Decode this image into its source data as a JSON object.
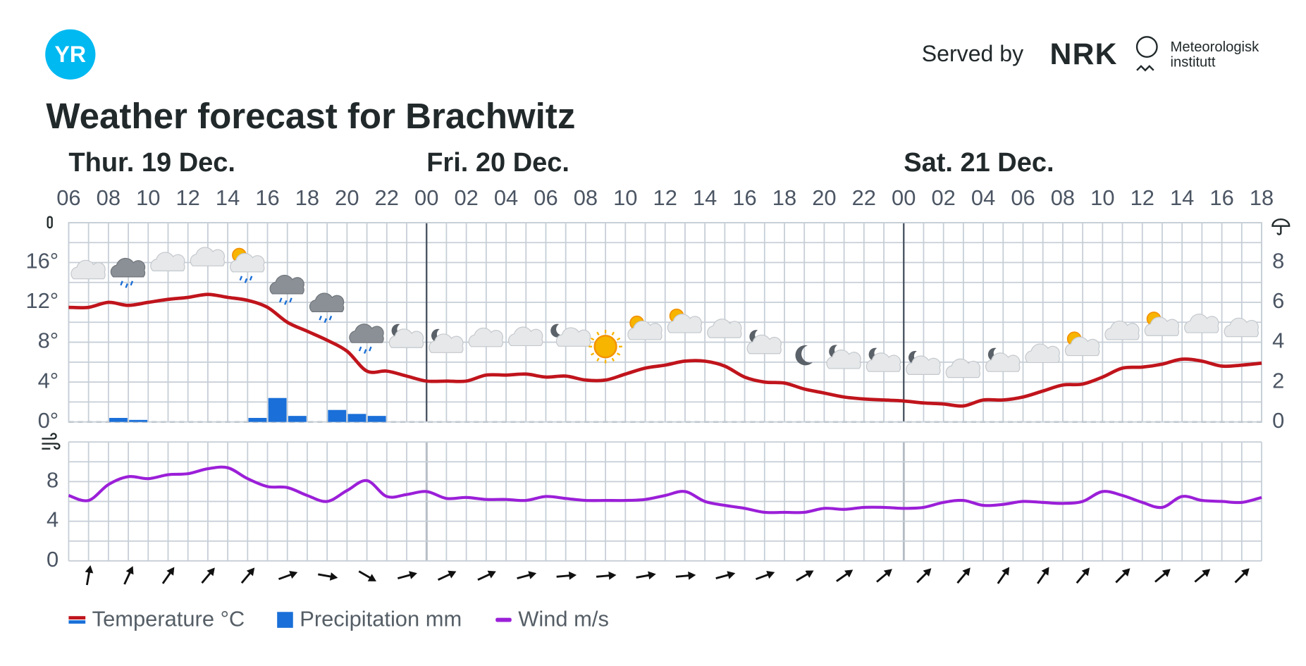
{
  "header": {
    "logo": "YR",
    "served_by": "Served by",
    "brand": "NRK",
    "institute": [
      "Meteorologisk",
      "institutt"
    ]
  },
  "chart_data": [
    {
      "type": "meteogram",
      "title": "Weather forecast for Brachwitz",
      "days": [
        "Thur. 19 Dec.",
        "Fri. 20 Dec.",
        "Sat. 21 Dec."
      ],
      "categories": [
        "06",
        null,
        "08",
        null,
        "10",
        null,
        "12",
        null,
        "14",
        null,
        "16",
        null,
        "18",
        null,
        "20",
        null,
        "22",
        null,
        "00",
        null,
        "02",
        null,
        "04",
        null,
        "06",
        null,
        "08",
        null,
        "10",
        null,
        "12",
        null,
        "14",
        null,
        "16",
        null,
        "18",
        null,
        "20",
        null,
        "22",
        null,
        "00",
        null,
        "02",
        null,
        "04",
        null,
        "06",
        null,
        "08",
        null,
        "10",
        null,
        "12",
        null,
        "14",
        null,
        "16",
        null,
        "18"
      ],
      "series": [
        {
          "name": "Temperature °C",
          "color": "#c0141c",
          "values": [
            11.5,
            11.5,
            12.0,
            11.7,
            12.0,
            12.3,
            12.5,
            12.8,
            12.5,
            12.2,
            11.5,
            10.0,
            9.1,
            8.2,
            7.1,
            5.1,
            5.1,
            4.6,
            4.1,
            4.1,
            4.1,
            4.7,
            4.7,
            4.8,
            4.5,
            4.6,
            4.2,
            4.2,
            4.8,
            5.4,
            5.7,
            6.1,
            6.1,
            5.6,
            4.5,
            4.0,
            3.9,
            3.3,
            2.9,
            2.5,
            2.3,
            2.2,
            2.1,
            1.9,
            1.8,
            1.6,
            2.2,
            2.2,
            2.5,
            3.1,
            3.7,
            3.8,
            4.5,
            5.4,
            5.5,
            5.8,
            6.3,
            6.1,
            5.6,
            5.7,
            5.9
          ]
        },
        {
          "name": "Precipitation mm",
          "color": "#1a6fd8",
          "axis": "y2",
          "values": [
            0,
            0,
            0.2,
            0.1,
            0,
            0,
            0,
            0,
            0,
            0.2,
            1.2,
            0.3,
            0,
            0.6,
            0.4,
            0.3,
            0,
            0,
            0,
            0,
            0,
            0,
            0,
            0,
            0,
            0,
            0,
            0,
            0,
            0,
            0,
            0,
            0,
            0,
            0,
            0,
            0,
            0,
            0,
            0,
            0,
            0,
            0,
            0,
            0,
            0,
            0,
            0,
            0,
            0,
            0,
            0,
            0,
            0,
            0,
            0,
            0,
            0,
            0,
            0,
            null
          ]
        }
      ],
      "ylim": [
        0,
        20
      ],
      "yticks": [
        {
          "value": 0,
          "label": "0°"
        },
        {
          "value": 4,
          "label": "4°"
        },
        {
          "value": 8,
          "label": "8°"
        },
        {
          "value": 12,
          "label": "12°"
        },
        {
          "value": 16,
          "label": "16°"
        }
      ],
      "ygrid": [
        2,
        4,
        6,
        8,
        10,
        12,
        14,
        16,
        18,
        20
      ],
      "y2lim": [
        0,
        10
      ],
      "y2ticks": [
        0,
        2,
        4,
        6,
        8
      ]
    },
    {
      "type": "line",
      "series": [
        {
          "name": "Wind m/s",
          "color": "#9b1fd8",
          "values": [
            6.6,
            6.1,
            7.7,
            8.5,
            8.3,
            8.7,
            8.8,
            9.3,
            9.4,
            8.3,
            7.5,
            7.4,
            6.6,
            6.0,
            7.1,
            8.1,
            6.5,
            6.7,
            7.0,
            6.3,
            6.4,
            6.2,
            6.2,
            6.1,
            6.5,
            6.3,
            6.1,
            6.1,
            6.1,
            6.2,
            6.6,
            7.0,
            6.0,
            5.6,
            5.3,
            4.9,
            4.9,
            4.9,
            5.3,
            5.2,
            5.4,
            5.4,
            5.3,
            5.4,
            5.9,
            6.1,
            5.6,
            5.7,
            6.0,
            5.9,
            5.8,
            6.0,
            7.0,
            6.6,
            5.9,
            5.4,
            6.5,
            6.1,
            6.0,
            5.9,
            6.4
          ]
        }
      ],
      "ylim": [
        0,
        12
      ],
      "yticks": [
        0,
        4,
        8
      ],
      "ygrid": [
        0,
        2,
        4,
        6,
        8,
        10,
        12
      ],
      "wind_directions": [
        10,
        25,
        35,
        40,
        40,
        70,
        100,
        120,
        75,
        65,
        65,
        75,
        85,
        85,
        80,
        85,
        75,
        70,
        60,
        55,
        50,
        45,
        40,
        35,
        35,
        40,
        45,
        50,
        50,
        45
      ]
    }
  ]
}
